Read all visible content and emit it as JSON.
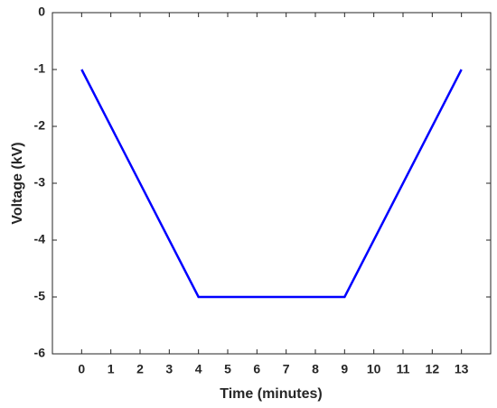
{
  "chart_data": {
    "type": "line",
    "x_label": "Time (minutes)",
    "y_label": "Voltage (kV)",
    "x": [
      0,
      4,
      9,
      13
    ],
    "series": [
      {
        "color": "#0000ff",
        "values": [
          -1,
          -5,
          -5,
          -1
        ]
      }
    ],
    "xlim": [
      -1,
      14
    ],
    "xticks": [
      0,
      1,
      2,
      3,
      4,
      5,
      6,
      7,
      8,
      9,
      10,
      11,
      12,
      13
    ],
    "ylim": [
      -6,
      0
    ],
    "yticks": [
      0,
      -1,
      -2,
      -3,
      -4,
      -5,
      -6
    ],
    "grid": false
  }
}
